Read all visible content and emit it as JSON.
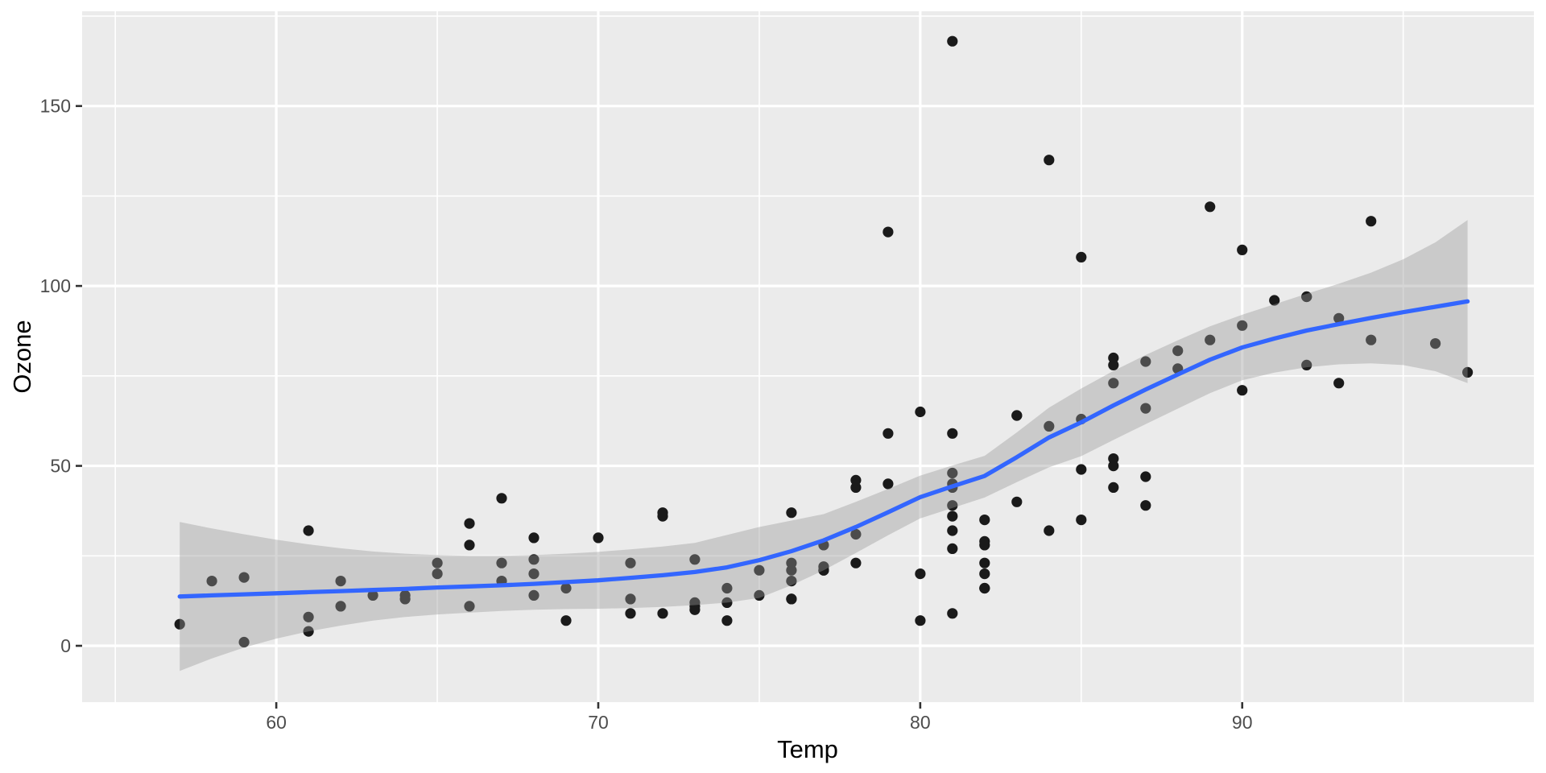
{
  "chart_data": {
    "type": "scatter",
    "title": "",
    "xlabel": "Temp",
    "ylabel": "Ozone",
    "legend": "none",
    "grid": "on",
    "x_axis": {
      "ticks": [
        60,
        70,
        80,
        90
      ],
      "tick_labels": [
        "60",
        "70",
        "80",
        "90"
      ],
      "minor_ticks": [
        55,
        65,
        75,
        85,
        95
      ],
      "range": [
        53.97,
        99.06
      ]
    },
    "y_axis": {
      "ticks": [
        0,
        50,
        100,
        150
      ],
      "tick_labels": [
        "0",
        "50",
        "100",
        "150"
      ],
      "minor_ticks": [
        25,
        75,
        125,
        175
      ],
      "range": [
        -15.66,
        176.33
      ]
    },
    "series": [
      {
        "name": "observations",
        "geom": "point",
        "points_temp_ozone": [
          [
            67,
            41
          ],
          [
            72,
            36
          ],
          [
            74,
            12
          ],
          [
            62,
            18
          ],
          [
            66,
            28
          ],
          [
            65,
            23
          ],
          [
            59,
            19
          ],
          [
            61,
            8
          ],
          [
            74,
            7
          ],
          [
            69,
            16
          ],
          [
            66,
            11
          ],
          [
            68,
            14
          ],
          [
            58,
            18
          ],
          [
            64,
            14
          ],
          [
            66,
            34
          ],
          [
            57,
            6
          ],
          [
            68,
            30
          ],
          [
            62,
            11
          ],
          [
            59,
            1
          ],
          [
            73,
            11
          ],
          [
            61,
            4
          ],
          [
            61,
            32
          ],
          [
            67,
            23
          ],
          [
            81,
            45
          ],
          [
            79,
            115
          ],
          [
            76,
            37
          ],
          [
            82,
            29
          ],
          [
            90,
            71
          ],
          [
            87,
            39
          ],
          [
            82,
            23
          ],
          [
            77,
            21
          ],
          [
            72,
            37
          ],
          [
            65,
            20
          ],
          [
            73,
            12
          ],
          [
            76,
            13
          ],
          [
            84,
            135
          ],
          [
            85,
            49
          ],
          [
            81,
            32
          ],
          [
            83,
            64
          ],
          [
            83,
            40
          ],
          [
            88,
            77
          ],
          [
            92,
            97
          ],
          [
            92,
            97
          ],
          [
            89,
            85
          ],
          [
            73,
            10
          ],
          [
            81,
            27
          ],
          [
            80,
            7
          ],
          [
            81,
            48
          ],
          [
            82,
            35
          ],
          [
            84,
            61
          ],
          [
            87,
            79
          ],
          [
            85,
            63
          ],
          [
            74,
            16
          ],
          [
            86,
            80
          ],
          [
            85,
            108
          ],
          [
            82,
            20
          ],
          [
            86,
            52
          ],
          [
            88,
            82
          ],
          [
            86,
            50
          ],
          [
            83,
            64
          ],
          [
            81,
            59
          ],
          [
            81,
            39
          ],
          [
            81,
            9
          ],
          [
            82,
            16
          ],
          [
            86,
            78
          ],
          [
            85,
            35
          ],
          [
            87,
            66
          ],
          [
            89,
            122
          ],
          [
            90,
            89
          ],
          [
            90,
            110
          ],
          [
            86,
            44
          ],
          [
            82,
            28
          ],
          [
            80,
            65
          ],
          [
            77,
            22
          ],
          [
            79,
            59
          ],
          [
            76,
            23
          ],
          [
            78,
            31
          ],
          [
            78,
            44
          ],
          [
            77,
            21
          ],
          [
            72,
            9
          ],
          [
            79,
            45
          ],
          [
            81,
            168
          ],
          [
            86,
            73
          ],
          [
            97,
            76
          ],
          [
            94,
            118
          ],
          [
            96,
            84
          ],
          [
            94,
            85
          ],
          [
            91,
            96
          ],
          [
            92,
            78
          ],
          [
            93,
            73
          ],
          [
            93,
            91
          ],
          [
            87,
            47
          ],
          [
            84,
            32
          ],
          [
            80,
            20
          ],
          [
            78,
            23
          ],
          [
            75,
            21
          ],
          [
            73,
            24
          ],
          [
            81,
            44
          ],
          [
            76,
            21
          ],
          [
            77,
            28
          ],
          [
            71,
            9
          ],
          [
            71,
            13
          ],
          [
            78,
            46
          ],
          [
            67,
            18
          ],
          [
            76,
            13
          ],
          [
            68,
            24
          ],
          [
            82,
            16
          ],
          [
            64,
            13
          ],
          [
            71,
            23
          ],
          [
            81,
            36
          ],
          [
            69,
            7
          ],
          [
            63,
            14
          ],
          [
            70,
            30
          ],
          [
            75,
            14
          ],
          [
            76,
            18
          ],
          [
            68,
            20
          ]
        ]
      },
      {
        "name": "loess-smooth",
        "geom": "smooth",
        "x": [
          57,
          58,
          59,
          60,
          61,
          62,
          63,
          64,
          65,
          66,
          67,
          68,
          69,
          70,
          71,
          72,
          73,
          74,
          75,
          76,
          77,
          78,
          79,
          80,
          81,
          82,
          83,
          84,
          85,
          86,
          87,
          88,
          89,
          90,
          91,
          92,
          93,
          94,
          95,
          96,
          97
        ],
        "fit": [
          13.7,
          14.0,
          14.3,
          14.6,
          14.9,
          15.2,
          15.5,
          15.8,
          16.2,
          16.5,
          16.8,
          17.2,
          17.7,
          18.2,
          18.9,
          19.6,
          20.5,
          21.8,
          23.8,
          26.3,
          29.3,
          33.0,
          37.1,
          41.3,
          44.3,
          47.2,
          52.4,
          57.9,
          62.1,
          66.8,
          71.2,
          75.4,
          79.5,
          82.9,
          85.4,
          87.6,
          89.4,
          91.1,
          92.7,
          94.2,
          95.7
        ],
        "ci_lower": [
          -7.0,
          -3.5,
          -0.5,
          2.0,
          4.0,
          5.6,
          7.0,
          8.0,
          8.7,
          9.2,
          9.7,
          10.0,
          10.2,
          10.3,
          10.5,
          10.8,
          11.3,
          12.0,
          13.3,
          16.8,
          21.0,
          25.8,
          30.7,
          35.4,
          38.3,
          41.2,
          45.5,
          49.6,
          52.7,
          57.2,
          61.6,
          65.9,
          70.2,
          73.8,
          75.9,
          77.4,
          78.2,
          78.5,
          78.0,
          76.3,
          73.0
        ],
        "ci_upper": [
          34.4,
          32.6,
          31.0,
          29.5,
          28.2,
          27.1,
          26.2,
          25.6,
          25.2,
          25.0,
          25.0,
          25.2,
          25.6,
          26.1,
          26.8,
          27.6,
          28.6,
          30.8,
          33.0,
          34.8,
          36.6,
          40.0,
          43.6,
          47.3,
          50.1,
          52.8,
          59.3,
          66.2,
          71.5,
          76.4,
          80.8,
          84.9,
          88.8,
          92.0,
          94.9,
          97.8,
          100.6,
          103.7,
          107.4,
          112.1,
          118.3
        ]
      }
    ]
  },
  "style": {
    "panel_bg": "#EBEBEB",
    "outer_bg": "#FFFFFF",
    "grid_color": "#FFFFFF",
    "point_color": "#1A1A1A",
    "smooth_line_color": "#3366FF",
    "ribbon_color": "#999999",
    "ribbon_opacity": 0.4,
    "tick_color": "#333333",
    "tick_label_color": "#4D4D4D",
    "axis_title_color": "#000000"
  }
}
